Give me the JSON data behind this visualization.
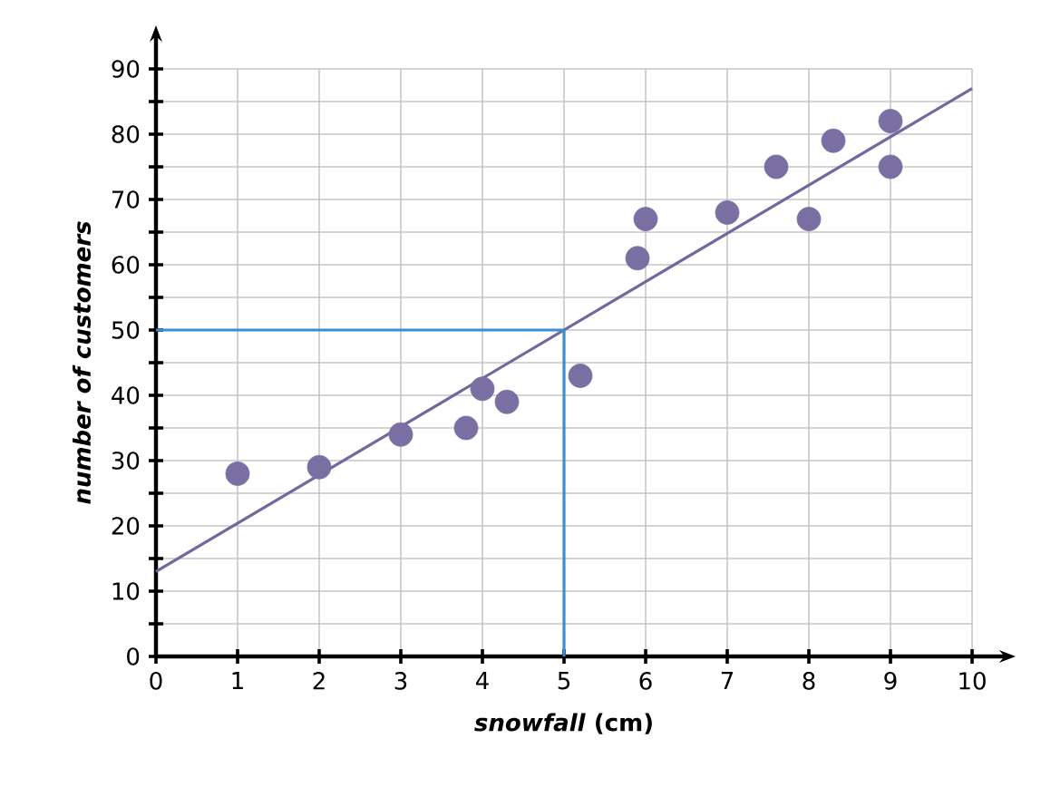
{
  "chart_data": {
    "type": "scatter",
    "xlabel": "*snowfall* (cm)",
    "ylabel": "number of customers",
    "xlim": [
      0,
      10
    ],
    "ylim": [
      0,
      90
    ],
    "xticks": [
      0,
      1,
      2,
      3,
      4,
      5,
      6,
      7,
      8,
      9,
      10
    ],
    "yticks": [
      0,
      {
        "value": 5,
        "label": null
      },
      10,
      {
        "value": 15,
        "label": null
      },
      20,
      {
        "value": 25,
        "label": null
      },
      30,
      {
        "value": 35,
        "label": null
      },
      40,
      {
        "value": 45,
        "label": null
      },
      50,
      {
        "value": 55,
        "label": null
      },
      60,
      {
        "value": 65,
        "label": null
      },
      70,
      {
        "value": 75,
        "label": null
      },
      80,
      {
        "value": 85,
        "label": null
      },
      90
    ],
    "grid": true,
    "marker": "circle",
    "series": [
      {
        "color": "#7a6fa3",
        "x": [
          1,
          2,
          3,
          3.8,
          4,
          4.3,
          5.2,
          5.9,
          6,
          7,
          7.6,
          8,
          8.3,
          9,
          9
        ],
        "values": [
          28,
          29,
          34,
          35,
          41,
          39,
          43,
          61,
          67,
          68,
          75,
          67,
          79,
          82,
          75
        ]
      },
      {
        "type": "line",
        "marker": "none",
        "color": "#7467a0",
        "x": [
          0,
          10
        ],
        "values": [
          13,
          87
        ]
      },
      {
        "type": "line",
        "marker": "none",
        "color": "#3b8fd0",
        "x": [
          0,
          5,
          5
        ],
        "values": [
          50,
          50,
          0
        ]
      }
    ]
  }
}
